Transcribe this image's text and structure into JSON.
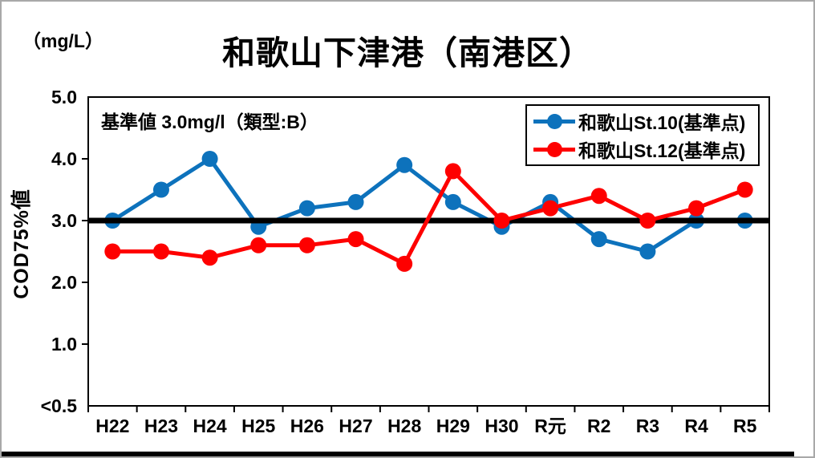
{
  "figure": {
    "units_label": "（mg/L）"
  },
  "chart_data": {
    "type": "line",
    "title": "和歌山下津港（南港区）",
    "ylabel": "COD75%値",
    "units": "mg/L",
    "categories": [
      "H22",
      "H23",
      "H24",
      "H25",
      "H26",
      "H27",
      "H28",
      "H29",
      "H30",
      "R元",
      "R2",
      "R3",
      "R4",
      "R5"
    ],
    "series": [
      {
        "name": "和歌山St.10(基準点)",
        "color": "#0d72bc",
        "values": [
          3.0,
          3.5,
          4.0,
          2.9,
          3.2,
          3.3,
          3.9,
          3.3,
          2.9,
          3.3,
          2.7,
          2.5,
          3.0,
          3.0
        ]
      },
      {
        "name": "和歌山St.12(基準点)",
        "color": "#fe0000",
        "values": [
          2.5,
          2.5,
          2.4,
          2.6,
          2.6,
          2.7,
          2.3,
          3.8,
          3.0,
          3.2,
          3.4,
          3.0,
          3.2,
          3.5
        ]
      }
    ],
    "ylim": [
      0,
      5
    ],
    "ytick_values": [
      5,
      4,
      3,
      2,
      1,
      0
    ],
    "ytick_labels": [
      "5.0",
      "4.0",
      "3.0",
      "2.0",
      "1.0",
      "<0.5"
    ],
    "reference_line": {
      "value": 3.0,
      "color": "#000000",
      "label": "基準値 3.0mg/l（類型:B）"
    },
    "legend_position": "top-right",
    "grid": false
  }
}
